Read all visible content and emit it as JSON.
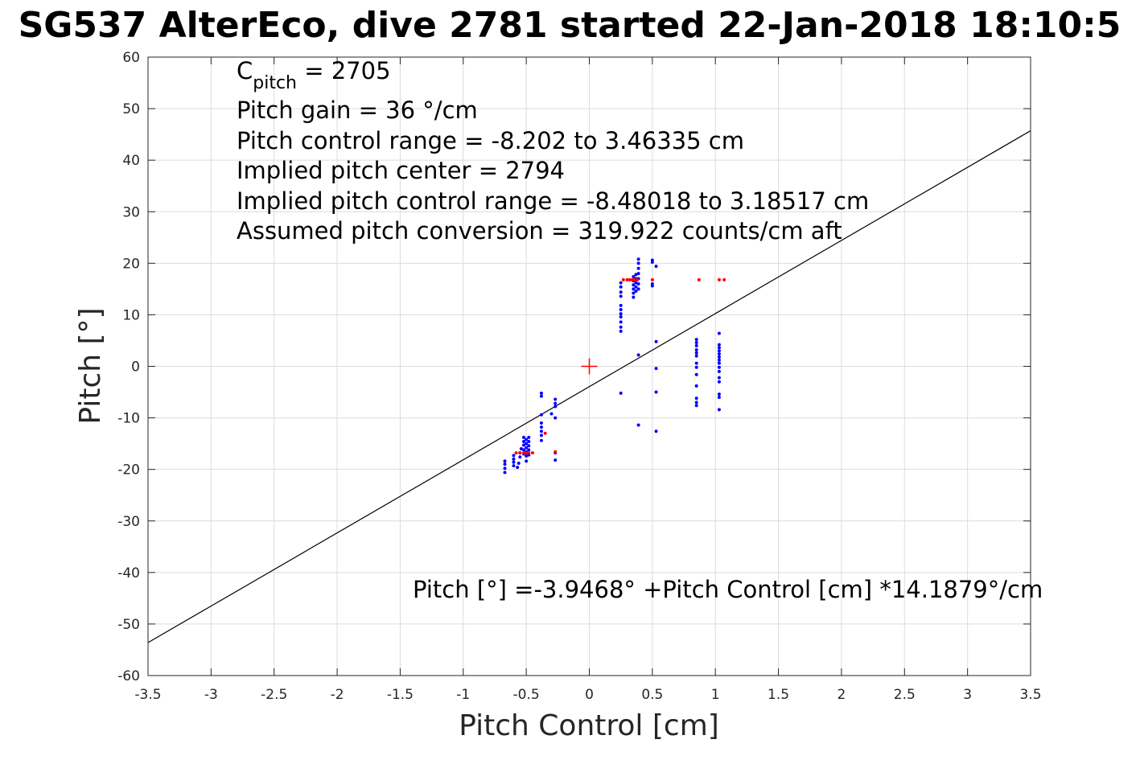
{
  "chart_data": {
    "type": "scatter",
    "title": "SG537 AlterEco, dive 2781 started 22-Jan-2018 18:10:5",
    "xlabel": "Pitch Control [cm]",
    "ylabel": "Pitch [°]",
    "xlim": [
      -3.5,
      3.5
    ],
    "ylim": [
      -60,
      60
    ],
    "xticks": [
      -3.5,
      -3,
      -2.5,
      -2,
      -1.5,
      -1,
      -0.5,
      0,
      0.5,
      1,
      1.5,
      2,
      2.5,
      3,
      3.5
    ],
    "xtick_labels": [
      "-3.5",
      "-3",
      "-2.5",
      "-2",
      "-1.5",
      "-1",
      "-0.5",
      "0",
      "0.5",
      "1",
      "1.5",
      "2",
      "2.5",
      "3",
      "3.5"
    ],
    "yticks": [
      -60,
      -50,
      -40,
      -30,
      -20,
      -10,
      0,
      10,
      20,
      30,
      40,
      50,
      60
    ],
    "ytick_labels": [
      "-60",
      "-50",
      "-40",
      "-30",
      "-20",
      "-10",
      "0",
      "10",
      "20",
      "30",
      "40",
      "50",
      "60"
    ],
    "grid": true,
    "colors": {
      "blue": "#0000ff",
      "red": "#ff0000",
      "line": "#000000"
    },
    "annotations": {
      "cpitch_main": "C",
      "cpitch_sub": "pitch",
      "cpitch_rest": " = 2705",
      "lines": [
        "Pitch gain = 36 °/cm",
        "Pitch control range = -8.202 to 3.46335 cm",
        "Implied pitch center = 2794",
        "Implied pitch control range = -8.48018 to 3.18517 cm",
        "Assumed pitch conversion = 319.922 counts/cm aft"
      ],
      "fit_equation": "Pitch [°] =-3.9468° +Pitch Control [cm] *14.1879°/cm"
    },
    "fit_line": {
      "intercept": -3.9468,
      "slope": 14.1879
    },
    "center_marker": {
      "x": 0,
      "y": 0
    },
    "series": [
      {
        "color": "blue",
        "points": [
          [
            -0.67,
            -20.6
          ],
          [
            -0.67,
            -19.8
          ],
          [
            -0.67,
            -19
          ],
          [
            -0.67,
            -18.4
          ],
          [
            -0.6,
            -19.3
          ],
          [
            -0.6,
            -18.6
          ],
          [
            -0.6,
            -18
          ],
          [
            -0.6,
            -17.3
          ],
          [
            -0.57,
            -19.6
          ],
          [
            -0.56,
            -18.8
          ],
          [
            -0.55,
            -17.6
          ],
          [
            -0.55,
            -16.8
          ],
          [
            -0.54,
            -16
          ],
          [
            -0.52,
            -17
          ],
          [
            -0.52,
            -16.2
          ],
          [
            -0.52,
            -15.3
          ],
          [
            -0.52,
            -14.6
          ],
          [
            -0.52,
            -13.8
          ],
          [
            -0.5,
            -18.4
          ],
          [
            -0.5,
            -17.4
          ],
          [
            -0.5,
            -16.6
          ],
          [
            -0.5,
            -15.8
          ],
          [
            -0.5,
            -15
          ],
          [
            -0.5,
            -14.2
          ],
          [
            -0.48,
            -17.2
          ],
          [
            -0.48,
            -16.2
          ],
          [
            -0.48,
            -15.4
          ],
          [
            -0.48,
            -14.6
          ],
          [
            -0.48,
            -13.8
          ],
          [
            -0.38,
            -14.4
          ],
          [
            -0.38,
            -13.4
          ],
          [
            -0.38,
            -12.6
          ],
          [
            -0.38,
            -11.8
          ],
          [
            -0.38,
            -11
          ],
          [
            -0.38,
            -9.4
          ],
          [
            -0.38,
            -5.8
          ],
          [
            -0.38,
            -5.2
          ],
          [
            -0.3,
            -9.2
          ],
          [
            -0.27,
            -18.2
          ],
          [
            -0.27,
            -16.8
          ],
          [
            -0.27,
            -10
          ],
          [
            -0.27,
            -7.8
          ],
          [
            -0.27,
            -7.2
          ],
          [
            -0.27,
            -6.4
          ],
          [
            0.25,
            6.8
          ],
          [
            0.25,
            7.6
          ],
          [
            0.25,
            8.6
          ],
          [
            0.25,
            9.6
          ],
          [
            0.25,
            10.2
          ],
          [
            0.25,
            11
          ],
          [
            0.25,
            11.8
          ],
          [
            0.25,
            13.6
          ],
          [
            0.25,
            14.4
          ],
          [
            0.25,
            15.4
          ],
          [
            0.25,
            16.2
          ],
          [
            0.25,
            -5.2
          ],
          [
            0.35,
            13.4
          ],
          [
            0.35,
            14.2
          ],
          [
            0.35,
            15
          ],
          [
            0.35,
            15.8
          ],
          [
            0.35,
            16.6
          ],
          [
            0.35,
            17.4
          ],
          [
            0.37,
            14.6
          ],
          [
            0.37,
            15.4
          ],
          [
            0.37,
            16.2
          ],
          [
            0.37,
            17
          ],
          [
            0.37,
            17.8
          ],
          [
            0.39,
            15
          ],
          [
            0.39,
            16
          ],
          [
            0.39,
            17
          ],
          [
            0.39,
            18
          ],
          [
            0.39,
            19
          ],
          [
            0.39,
            20
          ],
          [
            0.39,
            20.8
          ],
          [
            0.39,
            2.2
          ],
          [
            0.39,
            -11.4
          ],
          [
            0.5,
            20.6
          ],
          [
            0.5,
            20.2
          ],
          [
            0.5,
            16
          ],
          [
            0.5,
            15.6
          ],
          [
            0.53,
            19.4
          ],
          [
            0.53,
            4.8
          ],
          [
            0.53,
            -0.4
          ],
          [
            0.53,
            -5
          ],
          [
            0.53,
            -12.6
          ],
          [
            0.85,
            5.2
          ],
          [
            0.85,
            4.6
          ],
          [
            0.85,
            4
          ],
          [
            0.85,
            3.2
          ],
          [
            0.85,
            2.6
          ],
          [
            0.85,
            2
          ],
          [
            0.85,
            0.6
          ],
          [
            0.85,
            -0.2
          ],
          [
            0.85,
            -1.6
          ],
          [
            0.85,
            -3.8
          ],
          [
            0.85,
            -6.2
          ],
          [
            0.85,
            -7
          ],
          [
            0.85,
            -7.6
          ],
          [
            1.03,
            6.4
          ],
          [
            1.03,
            4.2
          ],
          [
            1.03,
            3.6
          ],
          [
            1.03,
            3
          ],
          [
            1.03,
            2.4
          ],
          [
            1.03,
            1.8
          ],
          [
            1.03,
            1.2
          ],
          [
            1.03,
            0.6
          ],
          [
            1.03,
            -0.2
          ],
          [
            1.03,
            -1
          ],
          [
            1.03,
            -2.2
          ],
          [
            1.03,
            -3
          ],
          [
            1.03,
            -5.4
          ],
          [
            1.03,
            -6
          ],
          [
            1.03,
            -8.4
          ]
        ]
      },
      {
        "color": "red",
        "points": [
          [
            -0.58,
            -16.8
          ],
          [
            -0.55,
            -16.8
          ],
          [
            -0.52,
            -16.8
          ],
          [
            -0.5,
            -16.8
          ],
          [
            -0.48,
            -16.8
          ],
          [
            -0.45,
            -16.8
          ],
          [
            -0.35,
            -13
          ],
          [
            -0.27,
            -16.6
          ],
          [
            0.27,
            16.8
          ],
          [
            0.3,
            16.8
          ],
          [
            0.32,
            16.8
          ],
          [
            0.34,
            16.8
          ],
          [
            0.36,
            16.8
          ],
          [
            0.38,
            16.8
          ],
          [
            0.5,
            16.8
          ],
          [
            0.87,
            16.8
          ],
          [
            1.03,
            16.8
          ],
          [
            1.07,
            16.8
          ]
        ]
      }
    ]
  }
}
